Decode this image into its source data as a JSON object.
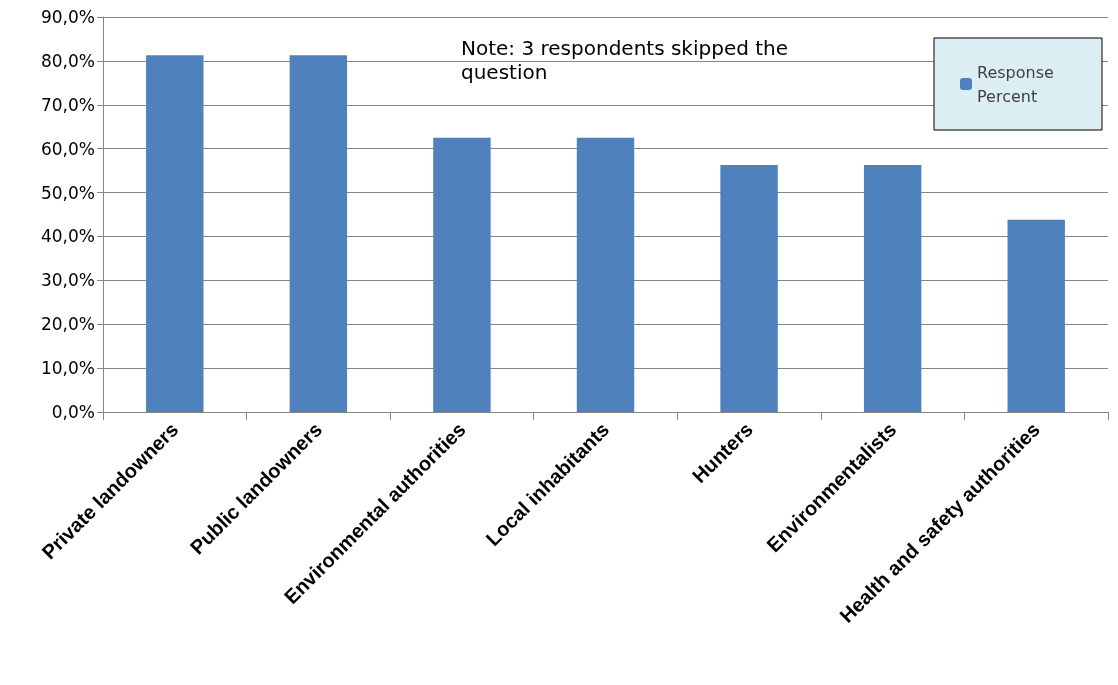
{
  "chart_data": {
    "type": "bar",
    "categories": [
      "Private landowners",
      "Public landowners",
      "Environmental authorities",
      "Local inhabitants",
      "Hunters",
      "Environmentalists",
      "Health and safety authorities"
    ],
    "series": [
      {
        "name": "Response Percent",
        "color": "#4f81bd",
        "values": [
          81.3,
          81.3,
          62.5,
          62.5,
          56.3,
          56.3,
          43.8
        ]
      }
    ],
    "ylim": [
      0,
      90
    ],
    "yticks": [
      {
        "value": 0,
        "label": "0,0%"
      },
      {
        "value": 10,
        "label": "10,0%"
      },
      {
        "value": 20,
        "label": "20,0%"
      },
      {
        "value": 30,
        "label": "30,0%"
      },
      {
        "value": 40,
        "label": "40,0%"
      },
      {
        "value": 50,
        "label": "50,0%"
      },
      {
        "value": 60,
        "label": "60,0%"
      },
      {
        "value": 70,
        "label": "70,0%"
      },
      {
        "value": 80,
        "label": "80,0%"
      },
      {
        "value": 90,
        "label": "90,0%"
      }
    ],
    "grid": "y",
    "legend": "top right",
    "annotations": [
      "Note: 3 respondents skipped the question"
    ]
  }
}
